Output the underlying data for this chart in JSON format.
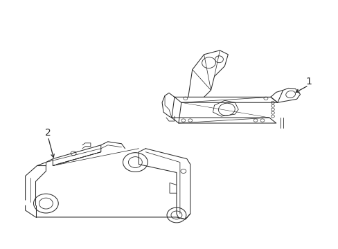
{
  "background_color": "#ffffff",
  "line_color": "#2a2a2a",
  "line_width": 0.75,
  "label1_text": "1",
  "label2_text": "2",
  "figsize": [
    4.89,
    3.6
  ],
  "dpi": 100
}
